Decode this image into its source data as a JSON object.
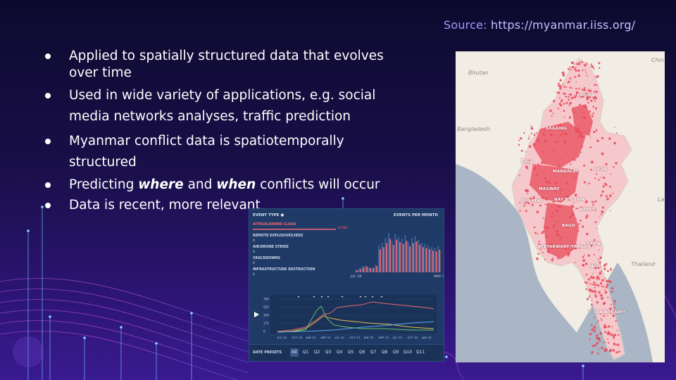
{
  "source": {
    "label": "Source:",
    "url": "https://myanmar.iiss.org/"
  },
  "bullets": [
    {
      "text": "Applied to spatially structured data that evolves over time"
    },
    {
      "text": "Used in wide variety of applications, e.g. social media networks analyses, traffic prediction"
    },
    {
      "text": "Myanmar conflict data is spatiotemporally structured"
    },
    {
      "pre": "Predicting ",
      "em1": "where",
      "mid": " and ",
      "em2": "when",
      "post": " conflicts will occur"
    },
    {
      "text": "Data is recent, more relevant"
    }
  ],
  "dashboard": {
    "event_type_label": "EVENT TYPE",
    "events_per_month_label": "EVENTS PER MONTH",
    "event_types": [
      {
        "name": "ATTACK/ARMED CLASH",
        "count": "12182"
      },
      {
        "name": "REMOTE EXPLOSIVES/IEDS",
        "count": "0"
      },
      {
        "name": "AIR/DRONE STRIKE",
        "count": "0"
      },
      {
        "name": "CRACKDOWNS",
        "count": "0"
      },
      {
        "name": "INFRASTRUCTURE DESTRUCTION",
        "count": "0"
      }
    ],
    "top_axis": {
      "left": "JUL '20",
      "right": "MAR '2"
    },
    "line_yticks": [
      "700",
      "525",
      "350",
      "175",
      "0"
    ],
    "line_xticks": [
      "JUL '20",
      "OCT '20",
      "JAN '21",
      "APR '21",
      "JUL '21",
      "OCT '21",
      "JAN '22",
      "APR '22",
      "JUL '22",
      "OCT '22",
      "JAN '23"
    ],
    "date_presets_label": "DATE PRESETS",
    "presets": [
      "All",
      "Q1",
      "Q2",
      "Q3",
      "Q4",
      "Q5",
      "Q6",
      "Q7",
      "Q8",
      "Q9",
      "Q10",
      "Q11"
    ],
    "selected_preset": "All",
    "bars_fraction": [
      0.05,
      0.08,
      0.12,
      0.14,
      0.1,
      0.1,
      0.15,
      0.55,
      0.6,
      0.7,
      0.8,
      0.65,
      0.78,
      0.72,
      0.68,
      0.75,
      0.62,
      0.7,
      0.74,
      0.66,
      0.6,
      0.58,
      0.55,
      0.52,
      0.5,
      0.54
    ],
    "colors": {
      "accent_red": "#f06a72",
      "panel": "#1f3a66",
      "line_green": "#6ac76a",
      "line_yellow": "#e8c04a",
      "line_blue": "#5aa8e8"
    }
  },
  "map": {
    "labels": {
      "bhutan": "Bhutan",
      "bangladesh": "Bangladesh",
      "thailand": "Thailand",
      "china": "Chin",
      "laos": "La"
    },
    "states": [
      {
        "name": "KACHIN"
      },
      {
        "name": "SAGAING"
      },
      {
        "name": "CHIN"
      },
      {
        "name": "MANDALAY"
      },
      {
        "name": "SHAN"
      },
      {
        "name": "MAGWAY"
      },
      {
        "name": "NAY PYI TAW"
      },
      {
        "name": "RAKHINE"
      },
      {
        "name": "KAYAH"
      },
      {
        "name": "BAGO"
      },
      {
        "name": "KAYIN"
      },
      {
        "name": "AYEYARWADY/YANGON"
      },
      {
        "name": "MON"
      },
      {
        "name": "TANINTHARYI"
      }
    ],
    "colors": {
      "land": "#f2ede4",
      "water": "#aab6c6",
      "conflict": "#e84a5a"
    }
  }
}
